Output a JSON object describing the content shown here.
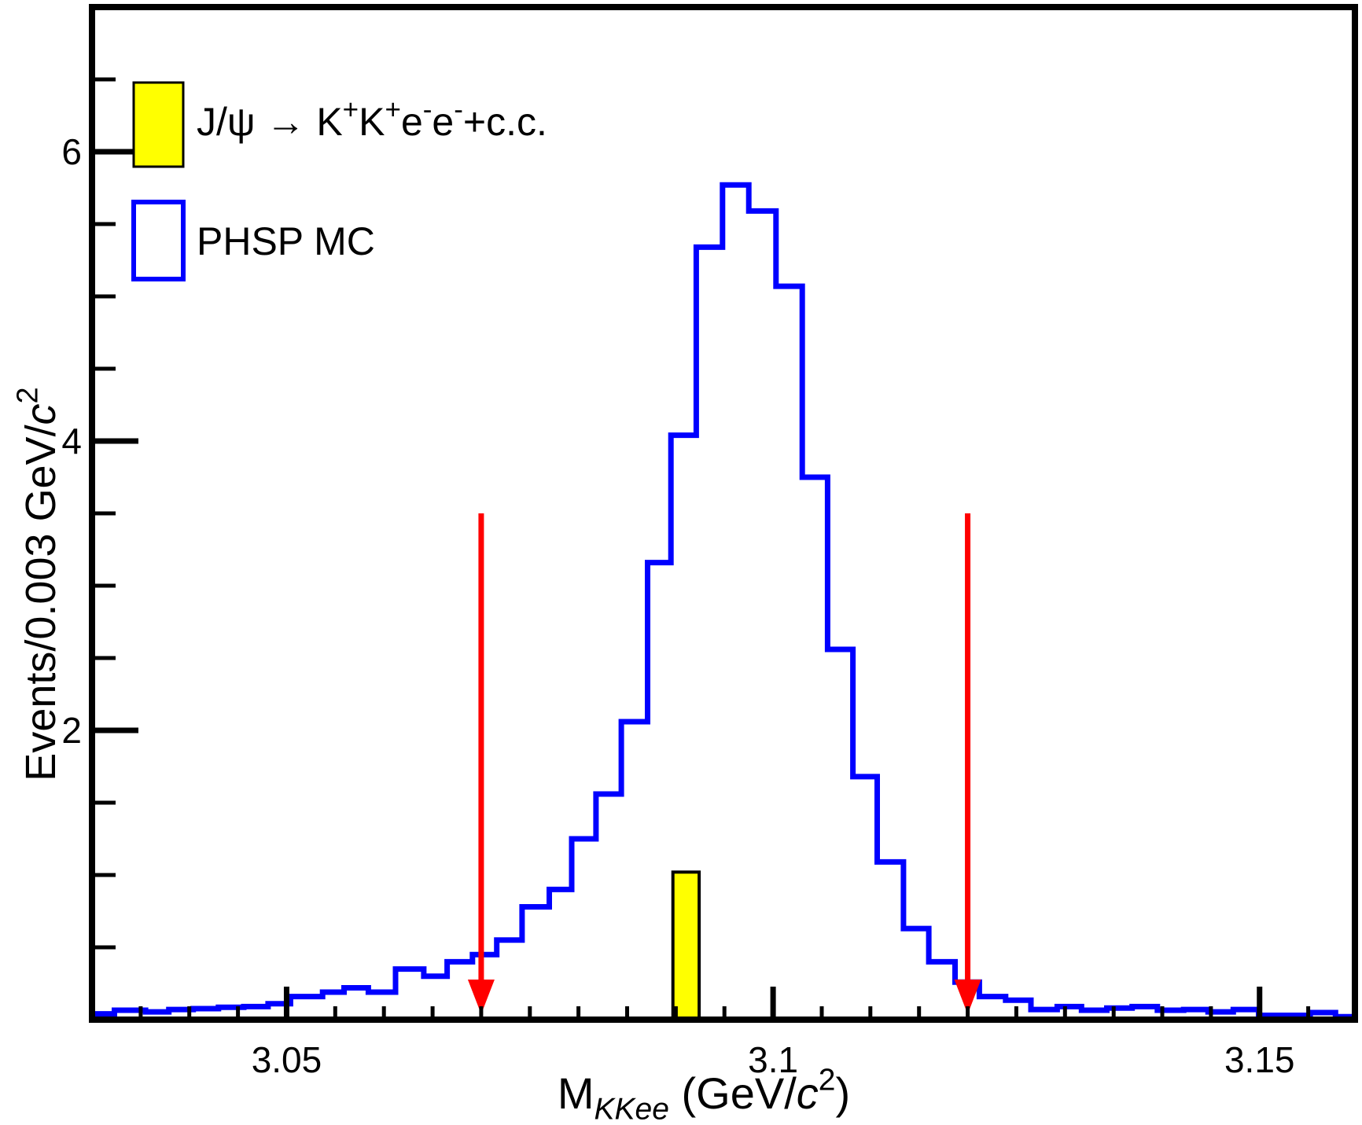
{
  "window": {
    "background": "#ffffff",
    "frame_color": "#000000"
  },
  "chart_data": {
    "type": "bar",
    "histogram_style": "step",
    "title": "",
    "xlabel": "M_KKee (GeV/c²)",
    "ylabel": "Events/0.003 GeV/c²",
    "xlim": [
      3.03,
      3.1598
    ],
    "ylim": [
      0,
      7
    ],
    "x_major_ticks": [
      3.05,
      3.1,
      3.15
    ],
    "x_major_tick_labels": [
      "3.05",
      "3.1",
      "3.15"
    ],
    "x_minor_tick_step": 0.005,
    "y_major_ticks": [
      2,
      4,
      6
    ],
    "y_major_tick_labels": [
      "2",
      "4",
      "6"
    ],
    "y_minor_tick_step": 0.5,
    "grid": false,
    "legend_position": "top-left",
    "series": [
      {
        "name": "PHSP MC",
        "color": "#0000ff",
        "render": "step-outline",
        "line_width": 7,
        "bin_left_edges": [
          3.03,
          3.0323,
          3.0355,
          3.0379,
          3.0404,
          3.043,
          3.0456,
          3.0481,
          3.0504,
          3.0537,
          3.0559,
          3.0584,
          3.0612,
          3.0641,
          3.0665,
          3.0691,
          3.0716,
          3.0742,
          3.077,
          3.0793,
          3.0818,
          3.0844,
          3.0871,
          3.0895,
          3.0921,
          3.0948,
          3.0975,
          3.1003,
          3.103,
          3.1056,
          3.1082,
          3.1107,
          3.1134,
          3.116,
          3.1187,
          3.1212,
          3.1239,
          3.1265,
          3.1292,
          3.1317,
          3.1343,
          3.1369,
          3.1395,
          3.1422,
          3.1447,
          3.1473,
          3.1499,
          3.1526,
          3.1552,
          3.1578
        ],
        "values": [
          0.04,
          0.065,
          0.054,
          0.07,
          0.076,
          0.086,
          0.09,
          0.11,
          0.16,
          0.19,
          0.22,
          0.19,
          0.35,
          0.3,
          0.4,
          0.45,
          0.55,
          0.78,
          0.9,
          1.25,
          1.56,
          2.06,
          3.16,
          4.04,
          5.34,
          5.77,
          5.59,
          5.07,
          3.75,
          2.56,
          1.68,
          1.09,
          0.63,
          0.4,
          0.26,
          0.16,
          0.135,
          0.07,
          0.09,
          0.065,
          0.08,
          0.09,
          0.065,
          0.07,
          0.054,
          0.07,
          0.03,
          0.03,
          0.049,
          0.02
        ],
        "last_bin_right_edge": 3.1598
      },
      {
        "name": "J/ψ → K⁺K⁺e⁻e⁻+c.c.",
        "color": "#ffff00",
        "outline": "#000000",
        "render": "filled-bar",
        "bins": [
          {
            "left": 3.0897,
            "right": 3.0924,
            "value": 1.02
          }
        ]
      }
    ],
    "cut_arrows": {
      "color": "#ff0000",
      "x_positions": [
        3.07,
        3.12
      ],
      "top_value": 3.5
    },
    "label_parts": {
      "xlabel": [
        {
          "t": "M"
        },
        {
          "t": "KKee",
          "s": "sub",
          "i": true
        },
        {
          "t": " (GeV/"
        },
        {
          "t": "c",
          "i": true
        },
        {
          "t": "2",
          "s": "sup"
        },
        {
          "t": ")"
        }
      ],
      "ylabel": [
        {
          "t": "Events/0.003 GeV/"
        },
        {
          "t": "c",
          "i": true
        },
        {
          "t": "2",
          "s": "sup"
        }
      ],
      "legend": [
        [
          {
            "t": "J/ψ → K"
          },
          {
            "t": "+",
            "s": "sup"
          },
          {
            "t": "K"
          },
          {
            "t": "+",
            "s": "sup"
          },
          {
            "t": "e"
          },
          {
            "t": "-",
            "s": "sup"
          },
          {
            "t": "e"
          },
          {
            "t": "-",
            "s": "sup"
          },
          {
            "t": "+c.c."
          }
        ],
        [
          {
            "t": "PHSP MC"
          }
        ]
      ]
    }
  }
}
